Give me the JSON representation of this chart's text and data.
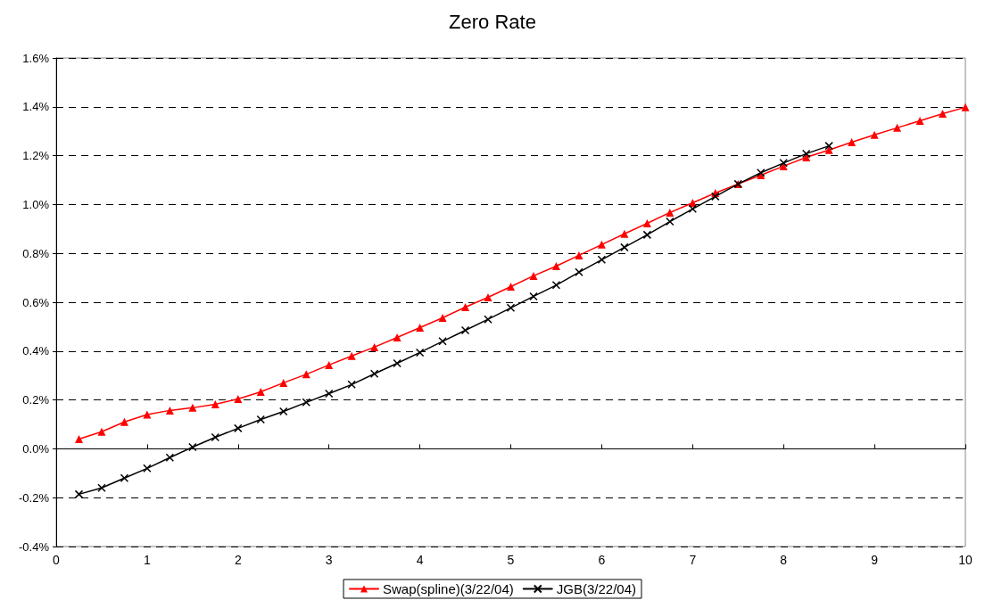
{
  "chart_data": {
    "type": "line",
    "title": "Zero Rate",
    "xlim": [
      0,
      10
    ],
    "xticks": [
      0,
      1,
      2,
      3,
      4,
      5,
      6,
      7,
      8,
      9,
      10
    ],
    "ylim": [
      -0.4,
      1.6
    ],
    "yticks": [
      {
        "value": -0.4,
        "label": "-0.4%"
      },
      {
        "value": -0.2,
        "label": "-0.2%"
      },
      {
        "value": 0,
        "label": "0.0%"
      },
      {
        "value": 0.2,
        "label": "0.2%"
      },
      {
        "value": 0.4,
        "label": "0.4%"
      },
      {
        "value": 0.6,
        "label": "0.6%"
      },
      {
        "value": 0.8,
        "label": "0.8%"
      },
      {
        "value": 1.0,
        "label": "1.0%"
      },
      {
        "value": 1.2,
        "label": "1.2%"
      },
      {
        "value": 1.4,
        "label": "1.4%"
      },
      {
        "value": 1.6,
        "label": "1.6%"
      }
    ],
    "grid": "y",
    "legend": "bottom",
    "line_style": "solid",
    "series": [
      {
        "name": "Swap(spline)(3/22/04)",
        "color": "#ff0000",
        "marker": "triangle",
        "x": [
          0.25,
          0.5,
          0.75,
          1,
          1.25,
          1.5,
          1.75,
          2,
          2.25,
          2.5,
          2.75,
          3,
          3.25,
          3.5,
          3.75,
          4,
          4.25,
          4.5,
          4.75,
          5,
          5.25,
          5.5,
          5.75,
          6,
          6.25,
          6.5,
          6.75,
          7,
          7.25,
          7.5,
          7.75,
          8,
          8.25,
          8.5,
          8.75,
          9,
          9.25,
          9.5,
          9.75,
          10
        ],
        "values": [
          0.04,
          0.07,
          0.11,
          0.14,
          0.157,
          0.168,
          0.182,
          0.204,
          0.233,
          0.27,
          0.305,
          0.343,
          0.38,
          0.416,
          0.456,
          0.496,
          0.536,
          0.58,
          0.62,
          0.664,
          0.708,
          0.748,
          0.792,
          0.836,
          0.88,
          0.923,
          0.967,
          1.007,
          1.047,
          1.084,
          1.12,
          1.157,
          1.193,
          1.223,
          1.255,
          1.285,
          1.314,
          1.343,
          1.372,
          1.398
        ]
      },
      {
        "name": "JGB(3/22/04)",
        "color": "#000000",
        "marker": "cross",
        "x": [
          0.25,
          0.5,
          0.75,
          1,
          1.25,
          1.5,
          1.75,
          2,
          2.25,
          2.5,
          2.75,
          3,
          3.25,
          3.5,
          3.75,
          4,
          4.25,
          4.5,
          4.75,
          5,
          5.25,
          5.5,
          5.75,
          6,
          6.25,
          6.5,
          6.75,
          7,
          7.25,
          7.5,
          7.75,
          8,
          8.25,
          8.5
        ],
        "values": [
          -0.186,
          -0.16,
          -0.12,
          -0.08,
          -0.036,
          0.007,
          0.047,
          0.084,
          0.12,
          0.153,
          0.19,
          0.226,
          0.263,
          0.307,
          0.35,
          0.394,
          0.44,
          0.485,
          0.53,
          0.577,
          0.624,
          0.67,
          0.723,
          0.774,
          0.825,
          0.876,
          0.93,
          0.982,
          1.033,
          1.084,
          1.13,
          1.17,
          1.208,
          1.24
        ]
      }
    ]
  }
}
